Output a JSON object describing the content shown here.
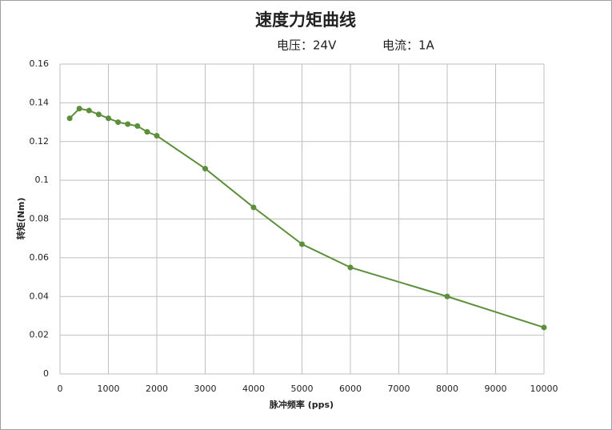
{
  "chart_data": {
    "type": "line",
    "title": "速度力矩曲线",
    "subtitle": [
      "电压：24V",
      "电流：1A"
    ],
    "x_label": "脉冲频率 (pps)",
    "y_label": "转矩(Nm)",
    "x": [
      200,
      400,
      600,
      800,
      1000,
      1200,
      1400,
      1600,
      1800,
      2000,
      3000,
      4000,
      5000,
      6000,
      8000,
      10000
    ],
    "series": [
      {
        "name": "转矩",
        "color": "#5b8f3a",
        "values": [
          0.132,
          0.137,
          0.136,
          0.134,
          0.132,
          0.13,
          0.129,
          0.128,
          0.125,
          0.123,
          0.106,
          0.086,
          0.067,
          0.055,
          0.04,
          0.024
        ]
      }
    ],
    "xlim": [
      0,
      10000
    ],
    "xticks": [
      0,
      1000,
      2000,
      3000,
      4000,
      5000,
      6000,
      7000,
      8000,
      9000,
      10000
    ],
    "ylim": [
      0,
      0.16
    ],
    "yticks": [
      0,
      0.02,
      0.04,
      0.06,
      0.08,
      0.1,
      0.12,
      0.14,
      0.16
    ],
    "grid": true
  }
}
